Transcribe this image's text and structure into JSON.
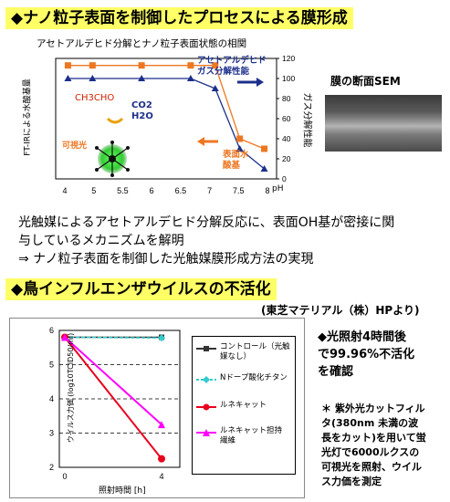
{
  "section1": {
    "title": "◆ナノ粒子表面を制御したプロセスによる膜形成",
    "chart_title": "アセトアルデヒド分解とナノ粒子表面状態の相関",
    "sem_label": "膜の断面SEM",
    "desc_line1": "光触媒によるアセトアルデヒド分解反応に、表面OH基が密接に関",
    "desc_line2": "与しているメカニズムを解明",
    "desc_line3": "⇒ ナノ粒子表面を制御した光触媒膜形成方法の実現"
  },
  "section2": {
    "title": "◆鳥インフルエンザウイルスの不活化",
    "source": "(東芝マテリアル（株）HPより)",
    "result_line1": "◆光照射4時間後",
    "result_line2": "で99.96%不活化",
    "result_line3": "を確認",
    "note_lines": [
      "＊ 紫外光カットフィル",
      "タ(380nm 未満の波",
      "長をカット)を用いて蛍",
      "光灯で6000ルクスの",
      "可視光を照射、ウイル",
      "ス力価を測定"
    ]
  },
  "colors": {
    "orange": "#ee7722",
    "navy": "#1c2f8a",
    "green": "#33cc33",
    "magenta": "#ff00ff",
    "red": "#e8001c",
    "cyan": "#33cccc",
    "dark": "#333333",
    "banner": "#ffff66"
  },
  "chart_data": [
    {
      "type": "line",
      "title": "アセトアルデヒド分解とナノ粒子表面状態の相関",
      "xlabel": "pH",
      "ylabel_left": "FT-IRによる水酸基量",
      "ylabel_right": "ガス分解性能",
      "x": [
        4,
        4.5,
        5.5,
        6.5,
        7,
        7.5,
        8
      ],
      "xlim": [
        3.75,
        8.25
      ],
      "xticks": [
        "4",
        "5",
        "5.5",
        "6",
        "6.5",
        "7",
        "7.5",
        "8"
      ],
      "ylim_right": [
        0,
        120
      ],
      "yticks_right": [
        "0",
        "20",
        "40",
        "60",
        "80",
        "100",
        "120"
      ],
      "series": [
        {
          "name": "ガス分解性能",
          "axis": "right",
          "x": [
            4,
            4.5,
            5.5,
            6.5,
            7,
            7.5,
            8
          ],
          "values": [
            100,
            100,
            100,
            100,
            90,
            30,
            10
          ]
        },
        {
          "name": "",
          "axis": "right",
          "x": [
            4,
            4.5,
            5.5,
            6.5,
            7,
            7.5,
            8
          ],
          "values": [
            113,
            113,
            113,
            113,
            113,
            40,
            30
          ]
        }
      ],
      "legend_right": "アセトアルデヒドガス分解性能",
      "annotations": [
        "CH3CHO",
        "CO2",
        "H2O",
        "可視光",
        "表面水酸基"
      ]
    },
    {
      "type": "line",
      "title": "",
      "xlabel": "照射時間 [h]",
      "ylabel": "ウイルス力価 (log10TCID50/ml)",
      "x": [
        0,
        4
      ],
      "xticks": [
        "0",
        "4"
      ],
      "ylim": [
        2,
        6
      ],
      "yticks": [
        "2",
        "3",
        "4",
        "5",
        "6"
      ],
      "series": [
        {
          "name": "コントロール（光触媒なし）",
          "color": "#333333",
          "values": [
            5.8,
            5.8
          ]
        },
        {
          "name": "Nドープ酸化チタン",
          "color": "#33cccc",
          "values": [
            5.8,
            5.78
          ]
        },
        {
          "name": "ルネキャット",
          "color": "#e8001c",
          "values": [
            5.8,
            2.25
          ]
        },
        {
          "name": "ルネキャット担持繊維",
          "color": "#ff00ff",
          "values": [
            5.8,
            3.25
          ]
        }
      ]
    }
  ]
}
